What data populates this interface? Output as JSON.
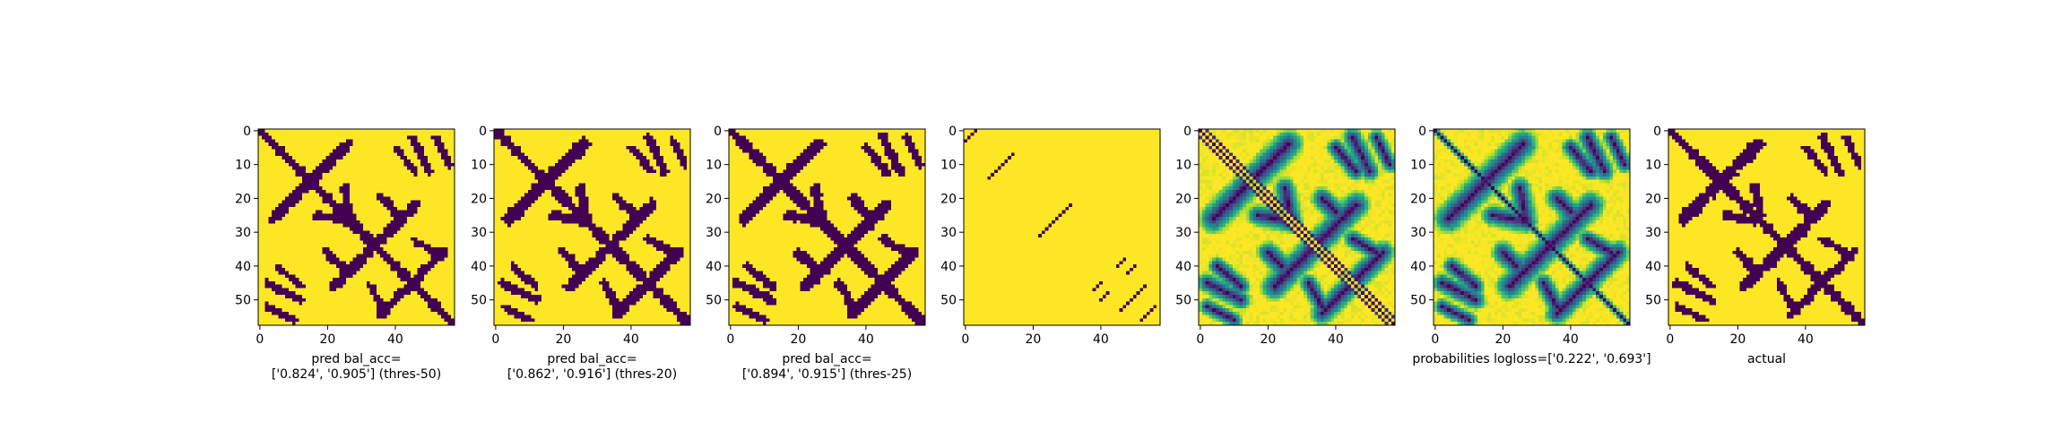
{
  "chart_data": {
    "type": "heatmap",
    "colormap": "viridis",
    "matrix_size": 58,
    "x_ticks": [
      "0",
      "20",
      "40"
    ],
    "y_ticks": [
      "0",
      "10",
      "20",
      "30",
      "40",
      "50"
    ],
    "panels": [
      {
        "id": "p1",
        "kind": "binary",
        "caption": [
          "pred bal_acc=",
          "['0.824', '0.905'] (thres-50)"
        ]
      },
      {
        "id": "p2",
        "kind": "binary",
        "caption": [
          "pred bal_acc=",
          "['0.862', '0.916'] (thres-20)"
        ]
      },
      {
        "id": "p3",
        "kind": "binary",
        "caption": [
          "pred bal_acc=",
          "['0.894', '0.915'] (thres-25)"
        ]
      },
      {
        "id": "p4",
        "kind": "sparse",
        "caption": []
      },
      {
        "id": "p5",
        "kind": "probability",
        "caption": []
      },
      {
        "id": "p6",
        "kind": "probability",
        "caption": [
          "probabilities logloss=['0.222', '0.693']"
        ]
      },
      {
        "id": "p7",
        "kind": "binary",
        "caption": [
          "actual"
        ]
      }
    ]
  }
}
